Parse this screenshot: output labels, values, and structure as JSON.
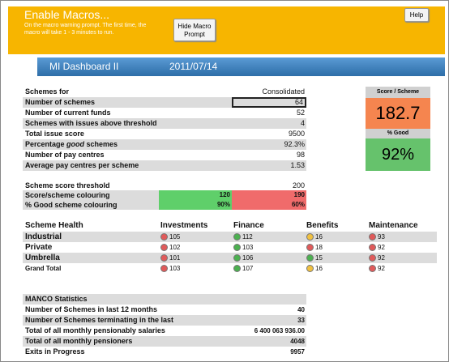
{
  "banner": {
    "title": "Enable Macros...",
    "subtitle": "On the macro warning prompt. The first time, the macro will take 1 - 3 minutes to run.",
    "hide_button": "Hide Macro Prompt",
    "help_button": "Help"
  },
  "header": {
    "title": "MI Dashboard II",
    "date": "2011/07/14"
  },
  "summary": {
    "rows": [
      {
        "label": [
          "Schemes for"
        ],
        "value": "Consolidated"
      },
      {
        "label": [
          "Number of schemes"
        ],
        "value": 64
      },
      {
        "label": [
          "Number of current funds"
        ],
        "value": 52
      },
      {
        "label": [
          "Schemes with issues above threshold"
        ],
        "value": 4
      },
      {
        "label": [
          "Total issue score"
        ],
        "value": 9500
      },
      {
        "label": [
          "Percentage ",
          "good",
          " schemes"
        ],
        "value": "92.3%"
      },
      {
        "label": [
          "Number of pay centres"
        ],
        "value": 98
      },
      {
        "label": [
          "Average pay centres per scheme"
        ],
        "value": 1.53
      }
    ]
  },
  "score": {
    "title": "Score / Scheme",
    "value": 182.7,
    "good_title": "% Good",
    "good_value": "92%"
  },
  "thresholds": {
    "rows": [
      {
        "label": "Scheme score threshold",
        "value": 200
      },
      {
        "label": "Score/scheme colouring",
        "good": 120,
        "bad": 190
      },
      {
        "label": "% Good scheme colouring",
        "good": "90%",
        "bad": "60%"
      }
    ]
  },
  "health": {
    "columns": [
      "Scheme Health",
      "Investments",
      "Finance",
      "Benefits",
      "Maintenance"
    ],
    "rows": [
      {
        "label": "Industrial",
        "cells": [
          {
            "value": 105,
            "color": "#e05a5a"
          },
          {
            "value": 112,
            "color": "#4cb050"
          },
          {
            "value": 16,
            "color": "#f0c040"
          },
          {
            "value": 93,
            "color": "#e05a5a"
          }
        ]
      },
      {
        "label": "Private",
        "cells": [
          {
            "value": 102,
            "color": "#e05a5a"
          },
          {
            "value": 103,
            "color": "#4cb050"
          },
          {
            "value": 18,
            "color": "#e05a5a"
          },
          {
            "value": 92,
            "color": "#e05a5a"
          }
        ]
      },
      {
        "label": "Umbrella",
        "cells": [
          {
            "value": 101,
            "color": "#e05a5a"
          },
          {
            "value": 106,
            "color": "#4cb050"
          },
          {
            "value": 15,
            "color": "#4cb050"
          },
          {
            "value": 92,
            "color": "#e05a5a"
          }
        ]
      },
      {
        "label": "Grand Total",
        "cells": [
          {
            "value": 103,
            "color": "#e05a5a"
          },
          {
            "value": 107,
            "color": "#4cb050"
          },
          {
            "value": 16,
            "color": "#f0c040"
          },
          {
            "value": 92,
            "color": "#e05a5a"
          }
        ]
      }
    ]
  },
  "manco": {
    "title": "MANCO Statistics",
    "rows": [
      {
        "label": "Number of Schemes in last 12 months",
        "value": 40
      },
      {
        "label": "Number of Schemes terminating in the last",
        "value": 33
      },
      {
        "label": "Total of all monthly pensionably salaries",
        "value": "6 400 063 936.00"
      },
      {
        "label": "Total of all monthly pensioners",
        "value": 4048
      },
      {
        "label": "Exits in Progress",
        "value": 9957
      }
    ]
  }
}
